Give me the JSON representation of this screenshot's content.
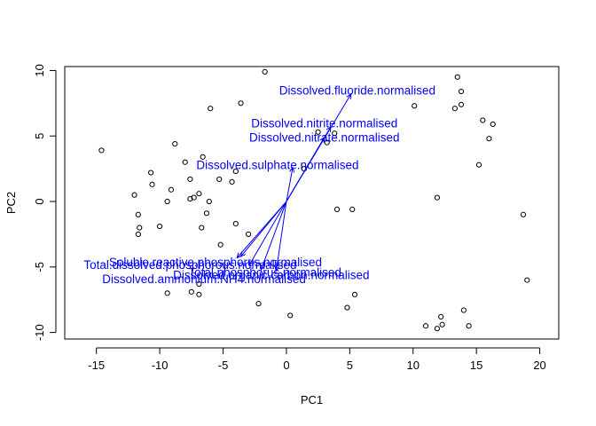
{
  "chart_data": {
    "type": "scatter",
    "title": "",
    "xlabel": "PC1",
    "ylabel": "PC2",
    "xlim": [
      -17.5,
      21.5
    ],
    "ylim": [
      -10.5,
      10.3
    ],
    "x_ticks": [
      -15,
      -10,
      -5,
      0,
      5,
      10,
      15,
      20
    ],
    "y_ticks": [
      -10,
      -5,
      0,
      5,
      10
    ],
    "grid": false,
    "colors": {
      "points": "#000000",
      "vectors": "#0000ff"
    },
    "points": [
      {
        "x": -14.6,
        "y": 3.9
      },
      {
        "x": -12.0,
        "y": 0.5
      },
      {
        "x": -11.7,
        "y": -1.0
      },
      {
        "x": -11.6,
        "y": -2.0
      },
      {
        "x": -11.7,
        "y": -2.5
      },
      {
        "x": -10.7,
        "y": 2.2
      },
      {
        "x": -10.6,
        "y": 1.3
      },
      {
        "x": -10.0,
        "y": -1.9
      },
      {
        "x": -9.4,
        "y": 0.0
      },
      {
        "x": -9.1,
        "y": 0.9
      },
      {
        "x": -8.8,
        "y": 4.4
      },
      {
        "x": -8.0,
        "y": 3.0
      },
      {
        "x": -7.6,
        "y": 1.7
      },
      {
        "x": -7.6,
        "y": 0.2
      },
      {
        "x": -7.3,
        "y": 0.3
      },
      {
        "x": -6.9,
        "y": 0.6
      },
      {
        "x": -6.6,
        "y": 3.4
      },
      {
        "x": -6.7,
        "y": -2.0
      },
      {
        "x": -6.3,
        "y": -0.9
      },
      {
        "x": -6.1,
        "y": 0.0
      },
      {
        "x": -6.0,
        "y": 7.1
      },
      {
        "x": -5.3,
        "y": 1.7
      },
      {
        "x": -5.2,
        "y": -3.3
      },
      {
        "x": -4.3,
        "y": 1.5
      },
      {
        "x": -4.0,
        "y": 2.3
      },
      {
        "x": -4.0,
        "y": -1.7
      },
      {
        "x": -3.6,
        "y": 7.5
      },
      {
        "x": -3.0,
        "y": -2.5
      },
      {
        "x": -1.7,
        "y": 9.9
      },
      {
        "x": -7.5,
        "y": -6.9
      },
      {
        "x": -9.4,
        "y": -7.0
      },
      {
        "x": -6.9,
        "y": -7.1
      },
      {
        "x": -6.9,
        "y": -6.3
      },
      {
        "x": -2.2,
        "y": -7.8
      },
      {
        "x": 0.3,
        "y": -8.7
      },
      {
        "x": 1.4,
        "y": 2.5
      },
      {
        "x": 2.5,
        "y": 5.3
      },
      {
        "x": 3.2,
        "y": 4.5
      },
      {
        "x": 3.8,
        "y": 5.2
      },
      {
        "x": 4.0,
        "y": -0.6
      },
      {
        "x": 5.2,
        "y": -0.6
      },
      {
        "x": 5.4,
        "y": -7.1
      },
      {
        "x": 4.8,
        "y": -8.1
      },
      {
        "x": 10.1,
        "y": 7.3
      },
      {
        "x": 11.9,
        "y": 0.3
      },
      {
        "x": 12.2,
        "y": -8.8
      },
      {
        "x": 12.3,
        "y": -9.4
      },
      {
        "x": 11.9,
        "y": -9.7
      },
      {
        "x": 11.0,
        "y": -9.5
      },
      {
        "x": 13.3,
        "y": 7.1
      },
      {
        "x": 13.5,
        "y": 9.5
      },
      {
        "x": 13.8,
        "y": 8.4
      },
      {
        "x": 13.8,
        "y": 7.4
      },
      {
        "x": 14.0,
        "y": -8.3
      },
      {
        "x": 14.4,
        "y": -9.5
      },
      {
        "x": 15.2,
        "y": 2.8
      },
      {
        "x": 15.5,
        "y": 6.2
      },
      {
        "x": 16.0,
        "y": 4.8
      },
      {
        "x": 16.3,
        "y": 5.9
      },
      {
        "x": 18.7,
        "y": -1.0
      },
      {
        "x": 19.0,
        "y": -6.0
      }
    ],
    "vectors": [
      {
        "name": "Dissolved.fluoride.normalised",
        "x": 5.1,
        "y": 8.2,
        "label_x": 5.6,
        "label_y": 8.5
      },
      {
        "name": "Dissolved.nitrite.normalised",
        "x": 3.5,
        "y": 5.7,
        "label_x": 3.0,
        "label_y": 6.0
      },
      {
        "name": "Dissolved.nitrate.normalised",
        "x": 3.0,
        "y": 4.9,
        "label_x": 3.0,
        "label_y": 4.9
      },
      {
        "name": "Dissolved.sulphate.normalised",
        "x": 0.5,
        "y": 2.6,
        "label_x": -0.7,
        "label_y": 2.8
      },
      {
        "name": "Total.dissolved.phosphorous.normalised",
        "x": -3.9,
        "y": -4.3,
        "label_x": -7.6,
        "label_y": -4.8
      },
      {
        "name": "Soluble.reactive.phosphorus.normalised",
        "x": -3.6,
        "y": -4.2,
        "label_x": -5.6,
        "label_y": -4.6
      },
      {
        "name": "Total.phosphorus.normalised",
        "x": -2.0,
        "y": -5.2,
        "label_x": -1.7,
        "label_y": -5.4
      },
      {
        "name": "Dissolved.ammonium.NH4.normalised",
        "x": -0.8,
        "y": -5.3,
        "label_x": -6.5,
        "label_y": -5.9
      },
      {
        "name": "Dissolved.organic.carbon.normalised",
        "x": -2.9,
        "y": -4.8,
        "label_x": -1.2,
        "label_y": -5.6
      }
    ]
  }
}
